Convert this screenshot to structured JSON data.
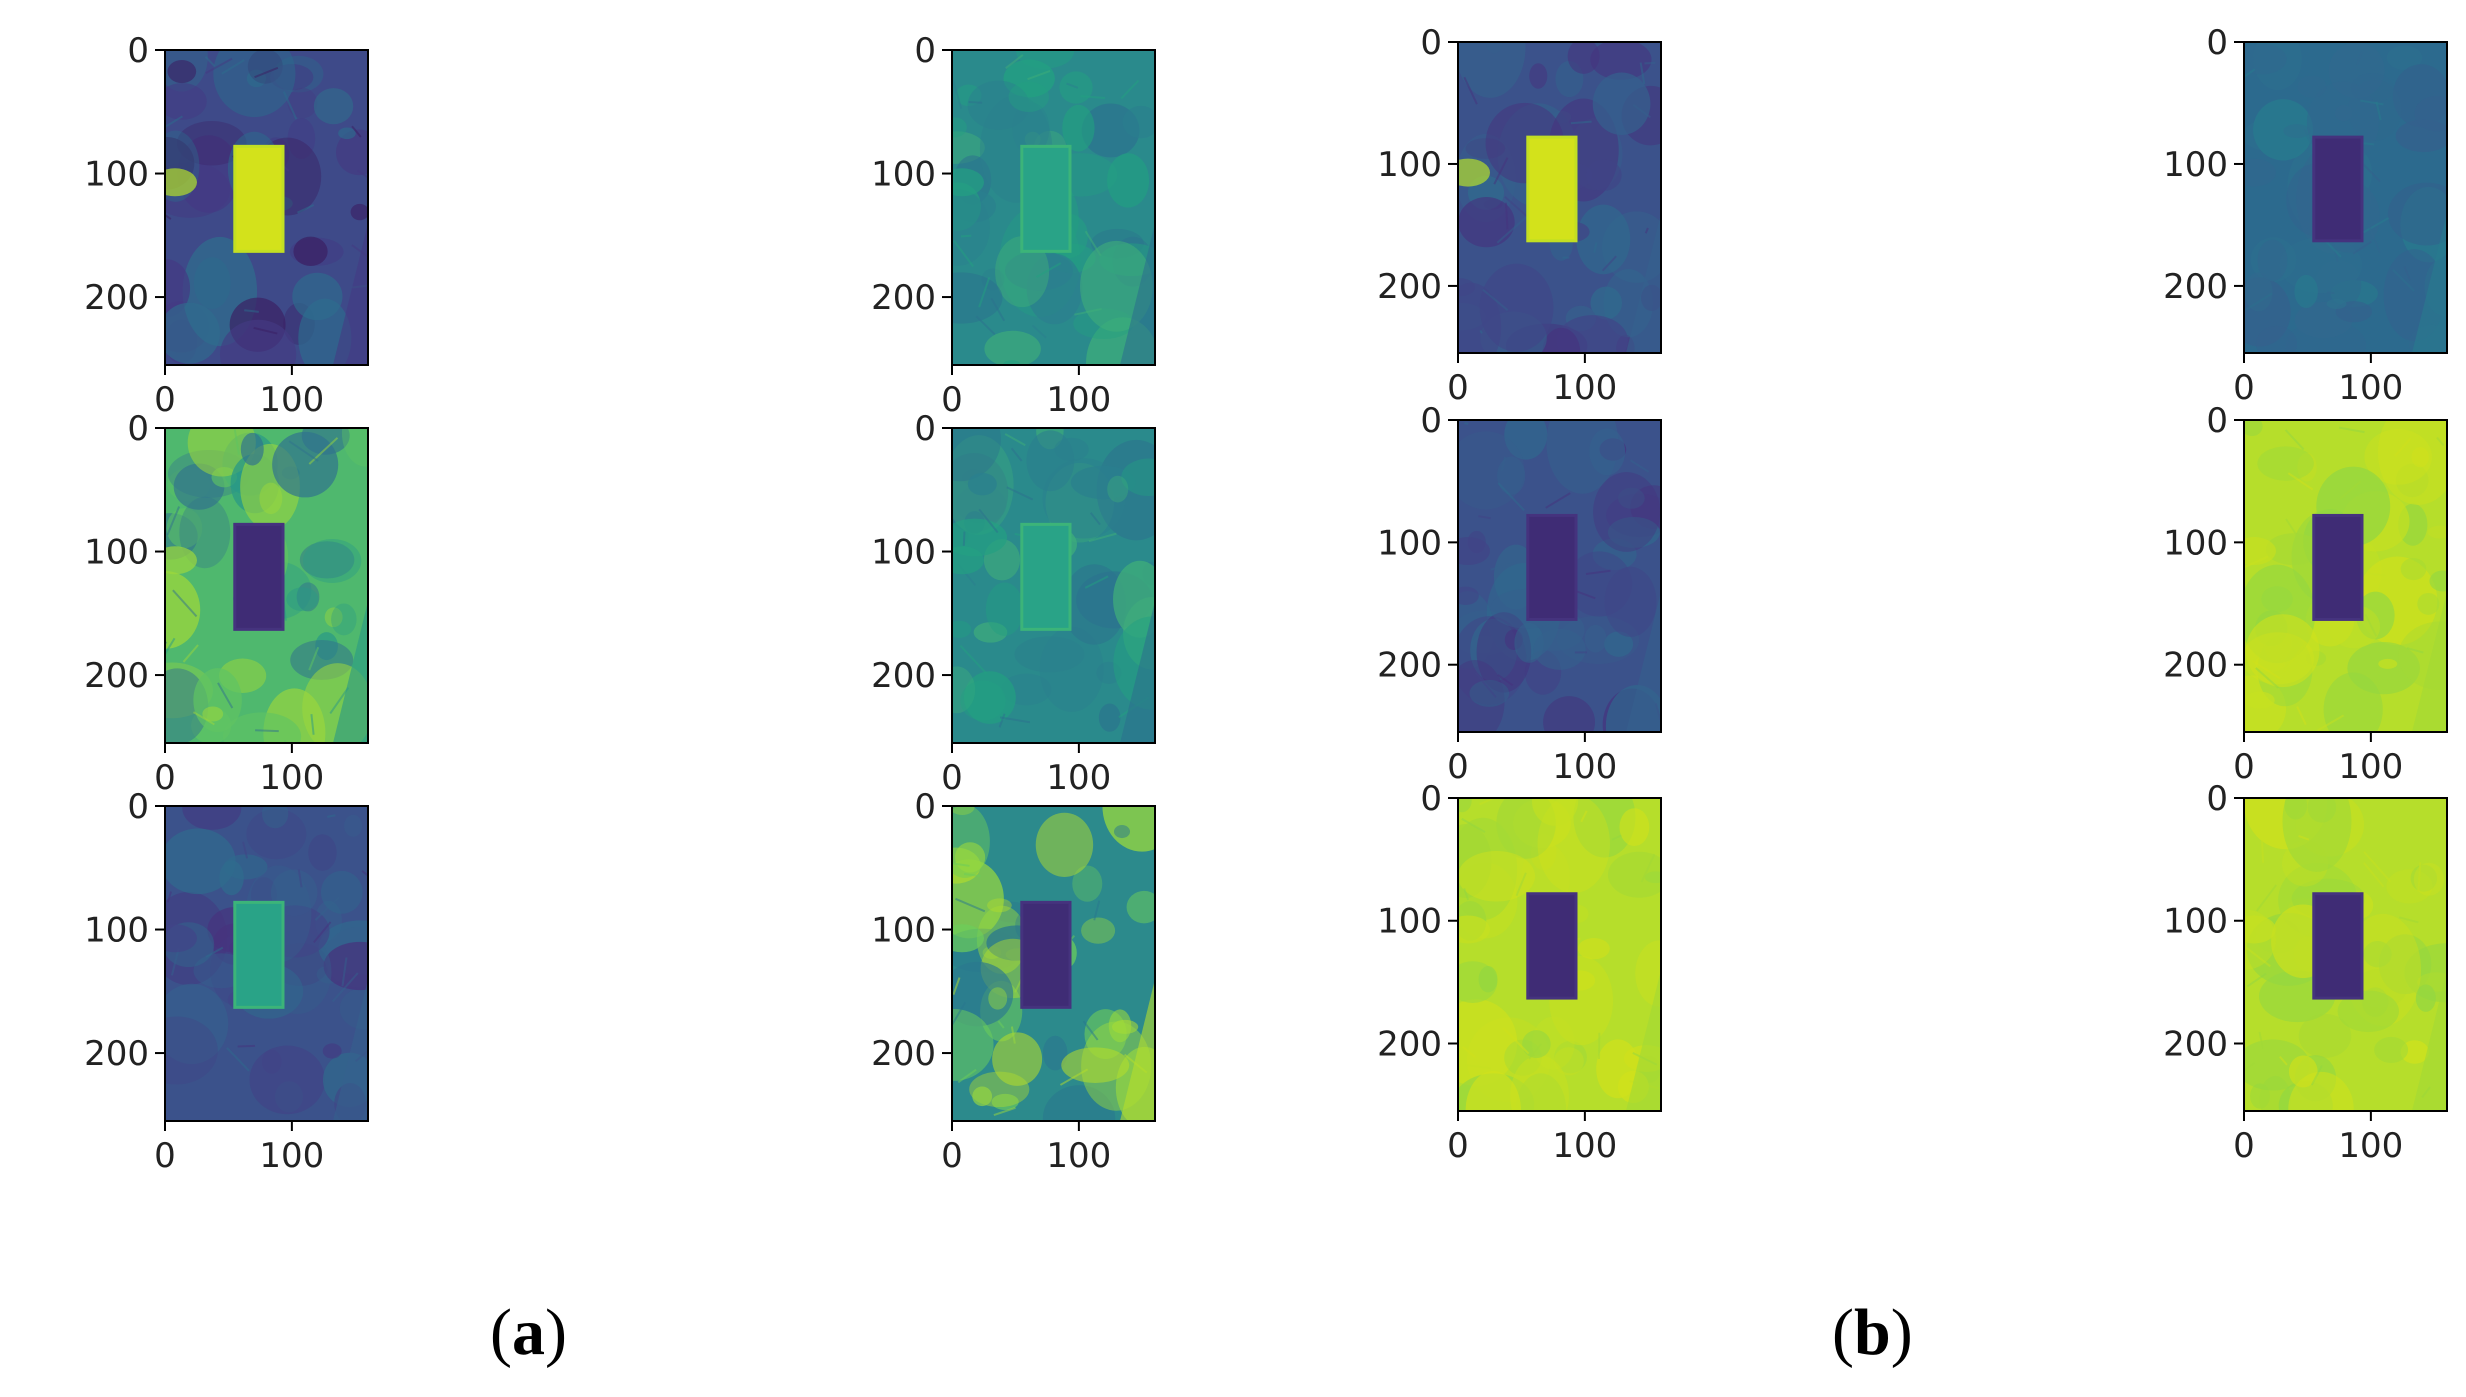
{
  "figure": {
    "panels": [
      {
        "label": "a",
        "rows": [
          [
            {
              "colormap": "viridis",
              "rect_tone": "bright",
              "background": "dark-mottled"
            },
            {
              "colormap": "viridis",
              "rect_tone": "medium",
              "background": "medium-textured"
            }
          ],
          [
            {
              "colormap": "viridis",
              "rect_tone": "dark",
              "background": "bright-mottled"
            },
            {
              "colormap": "viridis",
              "rect_tone": "medium",
              "background": "medium-textured"
            }
          ],
          [
            {
              "colormap": "viridis",
              "rect_tone": "medium",
              "background": "dark"
            },
            {
              "colormap": "viridis",
              "rect_tone": "dark",
              "background": "bright-halo"
            }
          ]
        ]
      },
      {
        "label": "b",
        "rows": [
          [
            {
              "colormap": "viridis",
              "rect_tone": "bright",
              "background": "dark"
            },
            {
              "colormap": "viridis",
              "rect_tone": "dark",
              "background": "dark-teal"
            }
          ],
          [
            {
              "colormap": "viridis",
              "rect_tone": "dark",
              "background": "dark"
            },
            {
              "colormap": "viridis",
              "rect_tone": "dark",
              "background": "bright"
            }
          ],
          [
            {
              "colormap": "viridis",
              "rect_tone": "dark",
              "background": "bright"
            },
            {
              "colormap": "viridis",
              "rect_tone": "dark",
              "background": "bright"
            }
          ]
        ]
      }
    ],
    "axes": {
      "y_ticks": [
        "0",
        "100",
        "200"
      ],
      "x_ticks": [
        "0",
        "100"
      ]
    },
    "captions": {
      "a": {
        "open": "(",
        "letter": "a",
        "close": ")"
      },
      "b": {
        "open": "(",
        "letter": "b",
        "close": ")"
      }
    }
  }
}
